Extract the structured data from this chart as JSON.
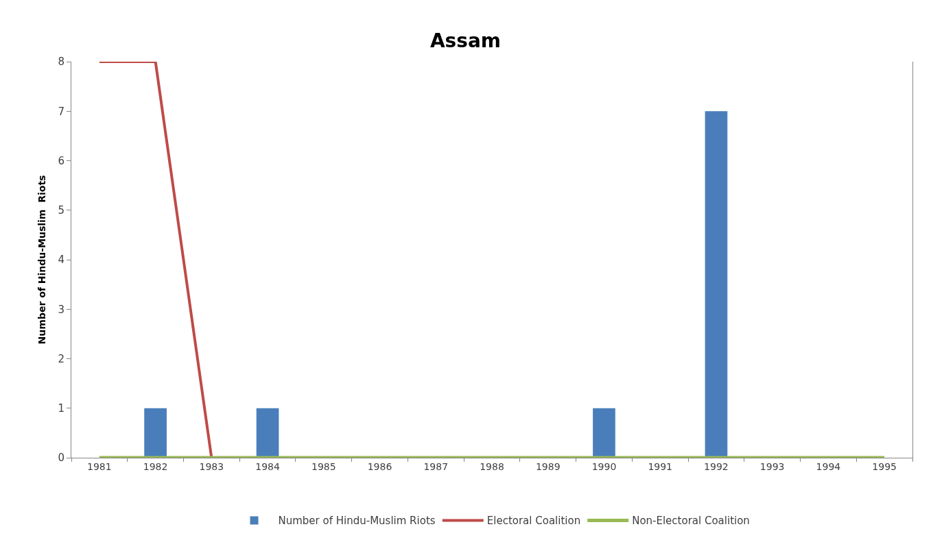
{
  "chart_data": {
    "type": "bar",
    "title": "Assam",
    "ylabel": "Number of Hindu-Muslim  Riots",
    "categories": [
      "1981",
      "1982",
      "1983",
      "1984",
      "1985",
      "1986",
      "1987",
      "1988",
      "1989",
      "1990",
      "1991",
      "1992",
      "1993",
      "1994",
      "1995"
    ],
    "series": [
      {
        "name": "Number of Hindu-Muslim Riots",
        "color": "#4a7ebb",
        "values": [
          0,
          1,
          0,
          1,
          0,
          0,
          0,
          0,
          0,
          1,
          0,
          7,
          0,
          0,
          0
        ]
      },
      {
        "name": "Electoral Coalition",
        "type": "line",
        "color": "#be4b48",
        "values": [
          8,
          8,
          0,
          null,
          null,
          null,
          null,
          null,
          null,
          null,
          null,
          null,
          null,
          null,
          null
        ]
      },
      {
        "name": "Non-Electoral Coalition",
        "type": "line",
        "color": "#98b954",
        "values": [
          0,
          0,
          0,
          0,
          0,
          0,
          0,
          0,
          0,
          0,
          0,
          0,
          0,
          0,
          0
        ]
      }
    ],
    "ylim": [
      0,
      8
    ],
    "yticks": [
      0,
      1,
      2,
      3,
      4,
      5,
      6,
      7,
      8
    ],
    "grid": false,
    "legend": "bottom",
    "marker": "none",
    "line_style": "solid"
  }
}
